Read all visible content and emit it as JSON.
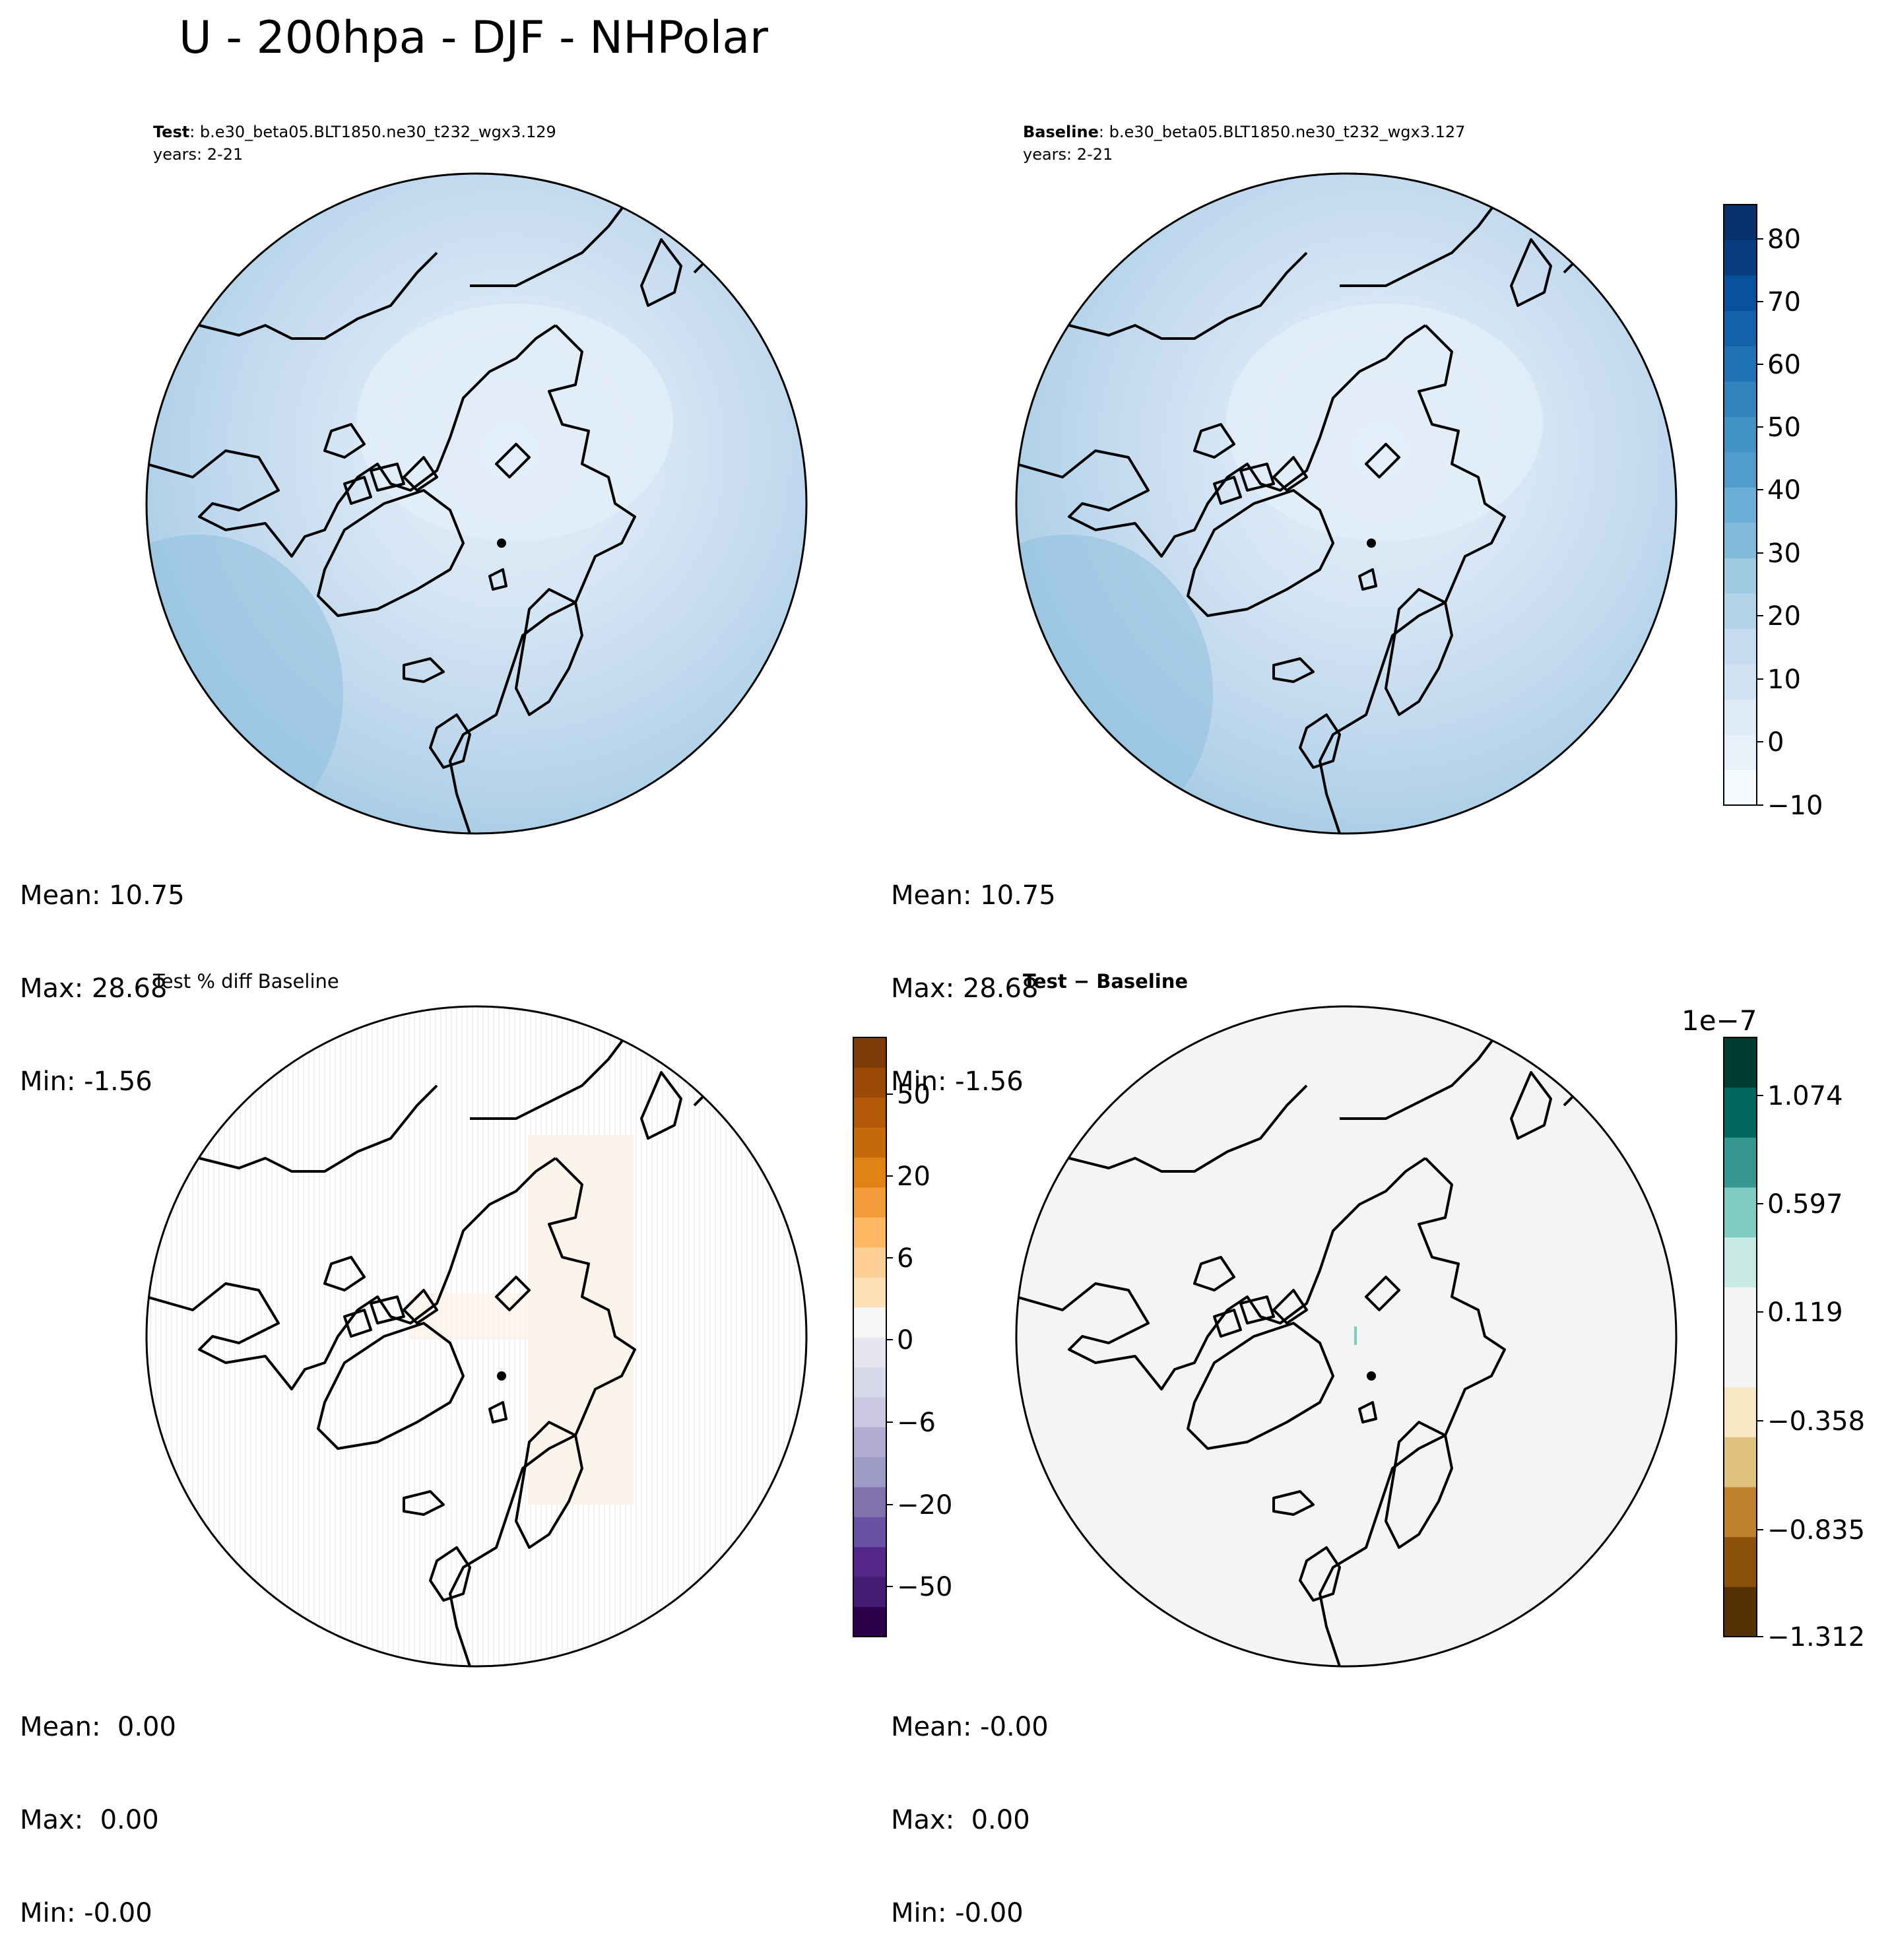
{
  "figure": {
    "title": "U - 200hpa - DJF - NHPolar"
  },
  "panels": [
    {
      "id": "test",
      "title_bold": "Test",
      "title_rest": ": b.e30_beta05.BLT1850.ne30_t232_wgx3.129",
      "subtitle": "years: 2-21",
      "stats": {
        "mean": "Mean: 10.75",
        "max": "Max: 28.68",
        "min": "Min: -1.56"
      }
    },
    {
      "id": "baseline",
      "title_bold": "Baseline",
      "title_rest": ": b.e30_beta05.BLT1850.ne30_t232_wgx3.127",
      "subtitle": "years: 2-21",
      "stats": {
        "mean": "Mean: 10.75",
        "max": "Max: 28.68",
        "min": "Min: -1.56"
      }
    },
    {
      "id": "pct-diff",
      "title_plain": "Test % diff Baseline",
      "stats": {
        "mean": "Mean:  0.00",
        "max": "Max:  0.00",
        "min": "Min: -0.00"
      }
    },
    {
      "id": "diff",
      "title_bold": "Test − Baseline",
      "stats": {
        "mean": "Mean: -0.00",
        "max": "Max:  0.00",
        "min": "Min: -0.00"
      }
    }
  ],
  "colorbars": {
    "field": {
      "ticks": [
        "80",
        "70",
        "60",
        "50",
        "40",
        "30",
        "20",
        "10",
        "0",
        "−10"
      ],
      "colors": [
        "#f7fbff",
        "#e8f1fa",
        "#deebf7",
        "#d1e3f3",
        "#c6dbef",
        "#b2d2e8",
        "#9ecae1",
        "#82badb",
        "#6baed6",
        "#519ccc",
        "#4292c6",
        "#3282be",
        "#2171b5",
        "#1361a9",
        "#08519c",
        "#083d7f",
        "#08306b"
      ]
    },
    "pct": {
      "ticks": [
        "50",
        "20",
        "6",
        "0",
        "−6",
        "−20",
        "−50"
      ],
      "colors": [
        "#2d004b",
        "#421b73",
        "#542788",
        "#6a51a3",
        "#8073ac",
        "#9e9ac8",
        "#b2abd2",
        "#cbc9e2",
        "#d8daeb",
        "#e6e6f0",
        "#f7f7f7",
        "#fee0b6",
        "#fdcf95",
        "#fdb863",
        "#f39a3b",
        "#e08214",
        "#c56a0c",
        "#b35806",
        "#9a4a06",
        "#7f3b08"
      ]
    },
    "diff": {
      "exponent": "1e−7",
      "ticks": [
        "1.074",
        "0.597",
        "0.119",
        "−0.358",
        "−0.835",
        "−1.312"
      ],
      "colors": [
        "#543005",
        "#8c510a",
        "#bf812d",
        "#dfc27d",
        "#f6e8c3",
        "#f5f5f5",
        "#f5f5f5",
        "#c7eae5",
        "#80cdc1",
        "#35978f",
        "#01665e",
        "#003c30"
      ]
    }
  }
}
